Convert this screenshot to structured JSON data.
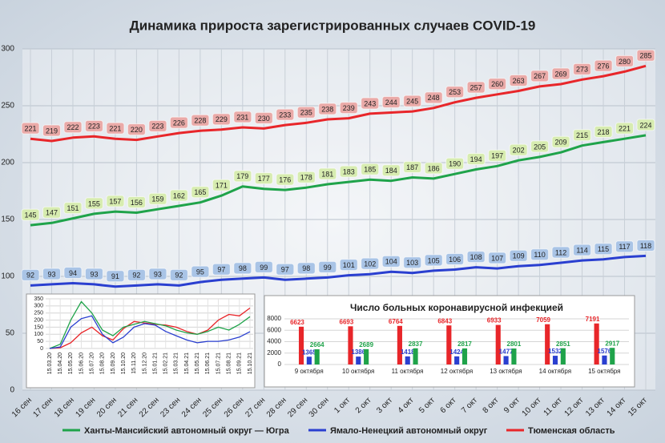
{
  "chart_data": [
    {
      "type": "line",
      "title": "Динамика прироста зарегистрированных случаев COVID-19",
      "categories": [
        "16 сен",
        "17 сен",
        "18 сен",
        "19 сен",
        "20 сен",
        "21 сен",
        "22 сен",
        "23 сен",
        "24 сен",
        "25 сен",
        "26 сен",
        "27 сен",
        "28 сен",
        "29 сен",
        "30 сен",
        "1 окт",
        "2 окт",
        "3 окт",
        "4 окт",
        "5 окт",
        "6 окт",
        "7 окт",
        "8 окт",
        "9 окт",
        "10 окт",
        "11 окт",
        "12 окт",
        "13 окт",
        "14 окт",
        "15 окт"
      ],
      "series": [
        {
          "name": "Ханты-Мансийский автономный округ — Югра",
          "color": "#1fa34a",
          "label_color": "#d7ecb0",
          "values": [
            145,
            147,
            151,
            155,
            157,
            156,
            159,
            162,
            165,
            171,
            179,
            177,
            176,
            178,
            181,
            183,
            185,
            184,
            187,
            186,
            190,
            194,
            197,
            202,
            205,
            209,
            215,
            218,
            221,
            224
          ]
        },
        {
          "name": "Ямало-Ненецкий автономный округ",
          "color": "#2a3fd0",
          "label_color": "#a9c4e6",
          "values": [
            92,
            93,
            94,
            93,
            91,
            92,
            93,
            92,
            95,
            97,
            98,
            99,
            97,
            98,
            99,
            101,
            102,
            104,
            103,
            105,
            106,
            108,
            107,
            109,
            110,
            112,
            114,
            115,
            117,
            118
          ]
        },
        {
          "name": "Тюменская область",
          "color": "#e8262a",
          "label_color": "#eaaaa8",
          "values": [
            221,
            219,
            222,
            223,
            221,
            220,
            223,
            226,
            228,
            229,
            231,
            230,
            233,
            235,
            238,
            239,
            243,
            244,
            245,
            248,
            253,
            257,
            260,
            263,
            267,
            269,
            273,
            276,
            280,
            285
          ]
        }
      ],
      "ylim": [
        0,
        300
      ],
      "yticks": [
        0,
        50,
        100,
        150,
        200,
        250,
        300
      ],
      "grid": true,
      "legend": "bottom",
      "data_labels": true
    },
    {
      "type": "line",
      "categories": [
        "15.03.20",
        "15.04.20",
        "15.05.20",
        "15.06.20",
        "15.07.20",
        "15.08.20",
        "15.09.20",
        "15.10.20",
        "15.11.20",
        "15.12.20",
        "15.01.21",
        "15.02.21",
        "15.03.21",
        "15.04.21",
        "15.05.21",
        "15.06.21",
        "15.07.21",
        "15.08.21",
        "15.09.21",
        "15.10.21"
      ],
      "series": [
        {
          "color": "#e8262a",
          "values": [
            0,
            5,
            40,
            110,
            150,
            90,
            60,
            140,
            190,
            180,
            170,
            165,
            150,
            120,
            100,
            130,
            200,
            240,
            230,
            285
          ]
        },
        {
          "color": "#1fa34a",
          "values": [
            0,
            30,
            200,
            330,
            250,
            130,
            90,
            150,
            170,
            190,
            175,
            160,
            130,
            110,
            100,
            120,
            150,
            130,
            170,
            224
          ]
        },
        {
          "color": "#2a3fd0",
          "values": [
            0,
            10,
            150,
            210,
            230,
            100,
            40,
            80,
            150,
            175,
            165,
            120,
            90,
            60,
            40,
            50,
            50,
            60,
            80,
            118
          ]
        }
      ],
      "ylim": [
        0,
        350
      ],
      "yticks": [
        0,
        50,
        100,
        150,
        200,
        250,
        300,
        350
      ],
      "grid": true,
      "data_labels": false
    },
    {
      "type": "bar",
      "title": "Число больных коронавирусной инфекцией",
      "categories": [
        "9 октября",
        "10 октября",
        "11 октября",
        "12 октября",
        "13 октября",
        "14 октября",
        "15 октября"
      ],
      "series": [
        {
          "color": "#e8262a",
          "values": [
            6623,
            6693,
            6764,
            6843,
            6933,
            7059,
            7191
          ]
        },
        {
          "color": "#2a3fd0",
          "values": [
            1365,
            1386,
            1418,
            1424,
            1477,
            1532,
            1576
          ]
        },
        {
          "color": "#1fa34a",
          "values": [
            2664,
            2689,
            2837,
            2817,
            2801,
            2851,
            2917
          ]
        }
      ],
      "ylim": [
        0,
        8000
      ],
      "yticks": [
        0,
        2000,
        4000,
        6000,
        8000
      ],
      "grid": true,
      "data_labels": true
    }
  ]
}
